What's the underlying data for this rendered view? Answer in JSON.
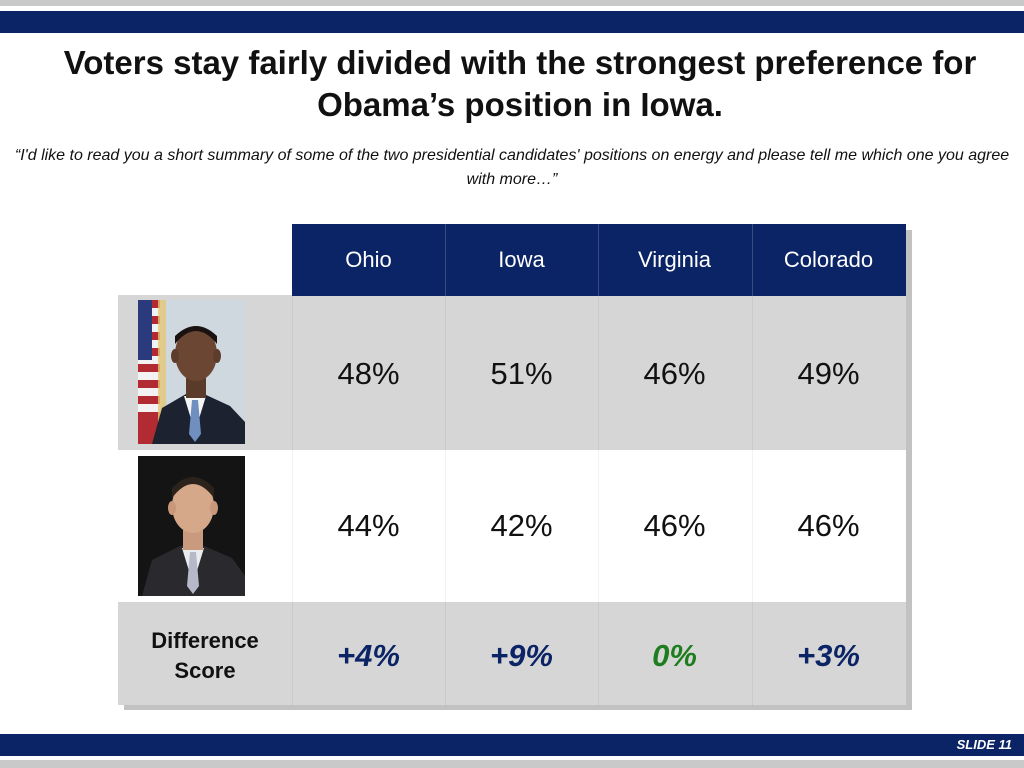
{
  "title": "Voters stay fairly divided with the strongest preference for Obama’s position in Iowa.",
  "question": "“I'd like to read you a short summary of some of the two presidential candidates' positions on energy and please tell me which one you agree with more…”",
  "slide_label": "SLIDE 11",
  "colors": {
    "navy": "#0b2466",
    "positive_diff": "#0b2466",
    "zero_diff": "#1e7d1e",
    "cell_gray": "#d6d6d6"
  },
  "chart_data": {
    "type": "table",
    "columns": [
      "Ohio",
      "Iowa",
      "Virginia",
      "Colorado"
    ],
    "rows": [
      {
        "candidate": "obama-photo",
        "values": [
          "48%",
          "51%",
          "46%",
          "49%"
        ]
      },
      {
        "candidate": "romney-photo",
        "values": [
          "44%",
          "42%",
          "46%",
          "46%"
        ]
      }
    ],
    "difference": {
      "label_line1": "Difference",
      "label_line2": "Score",
      "values": [
        "+4%",
        "+9%",
        "0%",
        "+3%"
      ]
    }
  }
}
